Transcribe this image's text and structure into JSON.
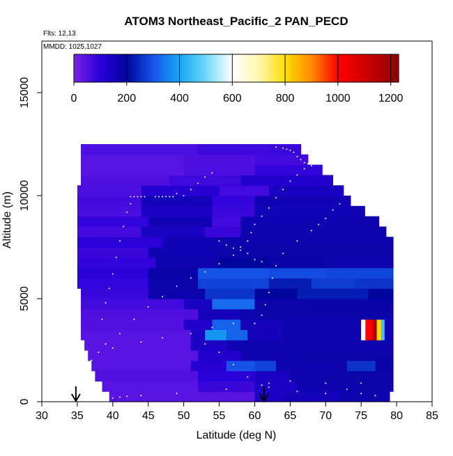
{
  "chart_data": {
    "type": "heatmap",
    "title": "ATOM3 Northeast_Pacific_2 PAN_PECD",
    "notes": {
      "flights": "Flts: 12,13",
      "mmdd": "MMDD: 1025,1027"
    },
    "xlabel": "Latitude (deg N)",
    "ylabel": "Altitude (m)",
    "xlim": [
      30,
      85
    ],
    "ylim": [
      0,
      17500
    ],
    "xticks": [
      "30",
      "35",
      "40",
      "45",
      "50",
      "55",
      "60",
      "65",
      "70",
      "75",
      "80",
      "85"
    ],
    "yticks": [
      "0",
      "5000",
      "10000",
      "15000"
    ],
    "grid": false,
    "colorbar": {
      "position": "top-inside",
      "range": [
        0,
        1230
      ],
      "ticks": [
        "0",
        "200",
        "400",
        "600",
        "800",
        "1000",
        "1200"
      ],
      "colors": [
        [
          0,
          "#7a22e8"
        ],
        [
          100,
          "#2a00d8"
        ],
        [
          200,
          "#00059c"
        ],
        [
          300,
          "#1553e8"
        ],
        [
          400,
          "#17a6f5"
        ],
        [
          500,
          "#6fd8f8"
        ],
        [
          600,
          "#ffffff"
        ],
        [
          700,
          "#fff7b0"
        ],
        [
          800,
          "#ffdf00"
        ],
        [
          900,
          "#ff8a00"
        ],
        [
          1000,
          "#ff0000"
        ],
        [
          1100,
          "#d00000"
        ],
        [
          1230,
          "#8c0000"
        ]
      ]
    },
    "markers": [
      {
        "lat": 34.8,
        "symbol": "arrow-down"
      },
      {
        "lat": 61.3,
        "symbol": "arrow-down"
      }
    ],
    "altitude_bin_m": 500,
    "rows": [
      {
        "alt": 250,
        "lat_min": 39.5,
        "lat_max": 79.0,
        "segments": [
          [
            39.5,
            60,
            40
          ],
          [
            60,
            64,
            130
          ],
          [
            64,
            72,
            150
          ],
          [
            72,
            79,
            170
          ]
        ]
      },
      {
        "alt": 750,
        "lat_min": 38.5,
        "lat_max": 79.5,
        "segments": [
          [
            38.5,
            52,
            45
          ],
          [
            52,
            60,
            80
          ],
          [
            60,
            66,
            130
          ],
          [
            66,
            73,
            165
          ],
          [
            73,
            79.5,
            175
          ]
        ]
      },
      {
        "alt": 1250,
        "lat_min": 37.5,
        "lat_max": 79.5,
        "segments": [
          [
            37.5,
            52,
            50
          ],
          [
            52,
            60,
            100
          ],
          [
            60,
            65,
            140
          ],
          [
            65,
            70,
            170
          ],
          [
            70,
            79.5,
            175
          ]
        ]
      },
      {
        "alt": 1750,
        "lat_min": 37.0,
        "lat_max": 79.5,
        "segments": [
          [
            37,
            51,
            45
          ],
          [
            51,
            56,
            110
          ],
          [
            56,
            60,
            300
          ],
          [
            60,
            63,
            280
          ],
          [
            63,
            73,
            170
          ],
          [
            73,
            77,
            260
          ],
          [
            77,
            79.5,
            180
          ]
        ]
      },
      {
        "alt": 2250,
        "lat_min": 36.5,
        "lat_max": 79.5,
        "segments": [
          [
            36.5,
            52,
            40
          ],
          [
            52,
            58,
            120
          ],
          [
            58,
            66,
            170
          ],
          [
            66,
            79.5,
            175
          ]
        ]
      },
      {
        "alt": 2750,
        "lat_min": 36.0,
        "lat_max": 79.5,
        "segments": [
          [
            36,
            51,
            40
          ],
          [
            51,
            56,
            130
          ],
          [
            56,
            63,
            165
          ],
          [
            63,
            79.5,
            170
          ]
        ]
      },
      {
        "alt": 3250,
        "lat_min": 35.5,
        "lat_max": 79.5,
        "segments": [
          [
            35.5,
            51,
            45
          ],
          [
            51,
            53,
            130
          ],
          [
            53,
            56,
            380
          ],
          [
            56,
            59,
            320
          ],
          [
            59,
            64,
            150
          ],
          [
            64,
            75,
            170
          ],
          [
            75,
            75.6,
            600
          ],
          [
            75.6,
            76.6,
            1000
          ],
          [
            76.6,
            77.2,
            1180
          ],
          [
            77.2,
            77.8,
            800
          ],
          [
            77.8,
            78.3,
            450
          ],
          [
            78.3,
            79.5,
            170
          ]
        ]
      },
      {
        "alt": 3750,
        "lat_min": 35.5,
        "lat_max": 79.5,
        "segments": [
          [
            35.5,
            50,
            50
          ],
          [
            50,
            54,
            120
          ],
          [
            54,
            58,
            320
          ],
          [
            58,
            64,
            150
          ],
          [
            64,
            75,
            165
          ],
          [
            75,
            75.6,
            600
          ],
          [
            75.6,
            76.6,
            1000
          ],
          [
            76.6,
            77.2,
            1180
          ],
          [
            77.2,
            77.8,
            800
          ],
          [
            77.8,
            78.3,
            450
          ],
          [
            78.3,
            79.5,
            170
          ]
        ]
      },
      {
        "alt": 4250,
        "lat_min": 35.5,
        "lat_max": 79.5,
        "segments": [
          [
            35.5,
            52,
            55
          ],
          [
            52,
            58,
            150
          ],
          [
            58,
            62,
            170
          ],
          [
            62,
            79.5,
            175
          ]
        ]
      },
      {
        "alt": 4750,
        "lat_min": 35.5,
        "lat_max": 79.5,
        "segments": [
          [
            35.5,
            50,
            70
          ],
          [
            50,
            54,
            140
          ],
          [
            54,
            60,
            330
          ],
          [
            60,
            68,
            175
          ],
          [
            68,
            79.5,
            180
          ]
        ]
      },
      {
        "alt": 5250,
        "lat_min": 35.5,
        "lat_max": 79.5,
        "segments": [
          [
            35.5,
            45,
            80
          ],
          [
            45,
            53,
            170
          ],
          [
            53,
            60,
            260
          ],
          [
            60,
            66,
            200
          ],
          [
            66,
            76,
            230
          ],
          [
            76,
            79.5,
            200
          ]
        ]
      },
      {
        "alt": 5750,
        "lat_min": 35.0,
        "lat_max": 79.5,
        "segments": [
          [
            35,
            45,
            90
          ],
          [
            45,
            52,
            175
          ],
          [
            52,
            62,
            280
          ],
          [
            62,
            68,
            230
          ],
          [
            68,
            74,
            270
          ],
          [
            74,
            79.5,
            260
          ]
        ]
      },
      {
        "alt": 6250,
        "lat_min": 35.0,
        "lat_max": 79.5,
        "segments": [
          [
            35,
            45,
            100
          ],
          [
            45,
            52,
            180
          ],
          [
            52,
            62,
            300
          ],
          [
            62,
            70,
            290
          ],
          [
            70,
            79.5,
            285
          ]
        ]
      },
      {
        "alt": 6750,
        "lat_min": 35.0,
        "lat_max": 79.5,
        "segments": [
          [
            35,
            46,
            90
          ],
          [
            46,
            55,
            170
          ],
          [
            55,
            62,
            200
          ],
          [
            62,
            70,
            180
          ],
          [
            70,
            79.5,
            170
          ]
        ]
      },
      {
        "alt": 7250,
        "lat_min": 35.0,
        "lat_max": 79.5,
        "segments": [
          [
            35,
            45,
            80
          ],
          [
            45,
            55,
            160
          ],
          [
            55,
            65,
            175
          ],
          [
            65,
            79.5,
            175
          ]
        ]
      },
      {
        "alt": 7750,
        "lat_min": 35.0,
        "lat_max": 79.5,
        "segments": [
          [
            35,
            47,
            100
          ],
          [
            47,
            55,
            160
          ],
          [
            55,
            63,
            170
          ],
          [
            63,
            79.5,
            170
          ]
        ]
      },
      {
        "alt": 8250,
        "lat_min": 35.0,
        "lat_max": 78.5,
        "segments": [
          [
            35,
            44,
            70
          ],
          [
            44,
            53,
            140
          ],
          [
            53,
            58,
            80
          ],
          [
            58,
            70,
            170
          ],
          [
            70,
            78.5,
            170
          ]
        ]
      },
      {
        "alt": 8750,
        "lat_min": 35.0,
        "lat_max": 77.5,
        "segments": [
          [
            35,
            45,
            90
          ],
          [
            45,
            54,
            160
          ],
          [
            54,
            58,
            70
          ],
          [
            58,
            70,
            160
          ],
          [
            70,
            77.5,
            165
          ]
        ]
      },
      {
        "alt": 9250,
        "lat_min": 35.0,
        "lat_max": 75.5,
        "segments": [
          [
            35,
            44,
            60
          ],
          [
            44,
            54,
            130
          ],
          [
            54,
            60,
            80
          ],
          [
            60,
            75.5,
            155
          ]
        ]
      },
      {
        "alt": 9750,
        "lat_min": 35.0,
        "lat_max": 73.5,
        "segments": [
          [
            35,
            44,
            70
          ],
          [
            44,
            54,
            150
          ],
          [
            54,
            60,
            90
          ],
          [
            60,
            73.5,
            160
          ]
        ]
      },
      {
        "alt": 10250,
        "lat_min": 35.0,
        "lat_max": 72.5,
        "segments": [
          [
            35,
            44,
            60
          ],
          [
            44,
            55,
            110
          ],
          [
            55,
            62,
            70
          ],
          [
            62,
            72.5,
            140
          ]
        ]
      },
      {
        "alt": 10750,
        "lat_min": 35.5,
        "lat_max": 71.0,
        "segments": [
          [
            35.5,
            48,
            55
          ],
          [
            48,
            58,
            75
          ],
          [
            58,
            71,
            120
          ]
        ]
      },
      {
        "alt": 11250,
        "lat_min": 35.5,
        "lat_max": 69.5,
        "segments": [
          [
            35.5,
            50,
            45
          ],
          [
            50,
            60,
            60
          ],
          [
            60,
            69.5,
            90
          ]
        ]
      },
      {
        "alt": 11750,
        "lat_min": 35.5,
        "lat_max": 67.5,
        "segments": [
          [
            35.5,
            50,
            45
          ],
          [
            50,
            60,
            55
          ],
          [
            60,
            67.5,
            70
          ]
        ]
      },
      {
        "alt": 12250,
        "lat_min": 35.5,
        "lat_max": 66.5,
        "segments": [
          [
            35.5,
            52,
            60
          ],
          [
            52,
            62,
            75
          ],
          [
            62,
            66.5,
            80
          ]
        ]
      }
    ],
    "flight_track_points": [
      [
        39,
        200
      ],
      [
        40,
        180
      ],
      [
        41,
        220
      ],
      [
        42,
        260
      ],
      [
        44,
        300
      ],
      [
        49,
        400
      ],
      [
        56,
        600
      ],
      [
        61,
        800
      ],
      [
        62,
        900
      ],
      [
        65,
        1000
      ],
      [
        70,
        900
      ],
      [
        75,
        400
      ],
      [
        77,
        300
      ],
      [
        40,
        2600
      ],
      [
        44,
        2900
      ],
      [
        47,
        3100
      ],
      [
        51,
        3300
      ],
      [
        54,
        3600
      ],
      [
        57,
        3800
      ],
      [
        60,
        3800
      ],
      [
        61,
        4200
      ],
      [
        61.5,
        4700
      ],
      [
        62,
        5300
      ],
      [
        62.5,
        6000
      ],
      [
        63,
        6600
      ],
      [
        64,
        7200
      ],
      [
        66,
        7800
      ],
      [
        68,
        8300
      ],
      [
        69,
        8600
      ],
      [
        70,
        8900
      ],
      [
        71,
        9300
      ],
      [
        72,
        9600
      ],
      [
        74,
        9700
      ],
      [
        76,
        9800
      ],
      [
        78,
        9700
      ],
      [
        79,
        9600
      ],
      [
        37,
        2000
      ],
      [
        38,
        2400
      ],
      [
        39,
        2800
      ],
      [
        41,
        3300
      ],
      [
        43,
        4000
      ],
      [
        45,
        4600
      ],
      [
        47,
        5100
      ],
      [
        49,
        5600
      ],
      [
        51,
        6000
      ],
      [
        53,
        6300
      ],
      [
        55,
        6700
      ],
      [
        57,
        7100
      ],
      [
        58,
        7500
      ],
      [
        59,
        7800
      ],
      [
        59.5,
        8200
      ],
      [
        60,
        8600
      ],
      [
        61,
        9000
      ],
      [
        62,
        9400
      ],
      [
        63,
        9900
      ],
      [
        64,
        10300
      ],
      [
        65,
        10700
      ],
      [
        66,
        11000
      ],
      [
        67,
        11300
      ],
      [
        68,
        11600
      ],
      [
        69,
        11900
      ],
      [
        42.5,
        9950
      ],
      [
        43,
        9950
      ],
      [
        43.5,
        9950
      ],
      [
        44,
        9950
      ],
      [
        44.5,
        9950
      ],
      [
        46,
        9950
      ],
      [
        46.5,
        9950
      ],
      [
        47,
        9950
      ],
      [
        47.5,
        9950
      ],
      [
        48,
        9950
      ],
      [
        48.5,
        9950
      ],
      [
        49,
        10100
      ],
      [
        50,
        10000
      ],
      [
        51,
        10300
      ],
      [
        52,
        10600
      ],
      [
        53,
        10900
      ],
      [
        54,
        11100
      ],
      [
        63,
        12350
      ],
      [
        64,
        12300
      ],
      [
        64.5,
        12250
      ],
      [
        65,
        12200
      ],
      [
        65.5,
        12100
      ],
      [
        66,
        11900
      ],
      [
        66.5,
        11750
      ],
      [
        67,
        11600
      ],
      [
        67.5,
        11550
      ],
      [
        68,
        11450
      ],
      [
        55,
        7800
      ],
      [
        56,
        7600
      ],
      [
        57,
        7450
      ],
      [
        58,
        7350
      ],
      [
        59,
        7200
      ],
      [
        60,
        6900
      ],
      [
        61,
        6800
      ],
      [
        36,
        1500
      ],
      [
        36.5,
        1200
      ],
      [
        37,
        800
      ],
      [
        38,
        600
      ],
      [
        53,
        2800
      ],
      [
        55,
        2400
      ],
      [
        57,
        1800
      ],
      [
        59,
        1200
      ],
      [
        62,
        700
      ],
      [
        66,
        500
      ],
      [
        70,
        400
      ],
      [
        73,
        600
      ],
      [
        75,
        900
      ],
      [
        38.5,
        4000
      ],
      [
        39,
        4800
      ],
      [
        39.5,
        5500
      ],
      [
        40,
        6200
      ],
      [
        40.5,
        7000
      ],
      [
        41,
        7800
      ],
      [
        41.5,
        8500
      ],
      [
        42,
        9200
      ],
      [
        42.5,
        9600
      ]
    ]
  }
}
